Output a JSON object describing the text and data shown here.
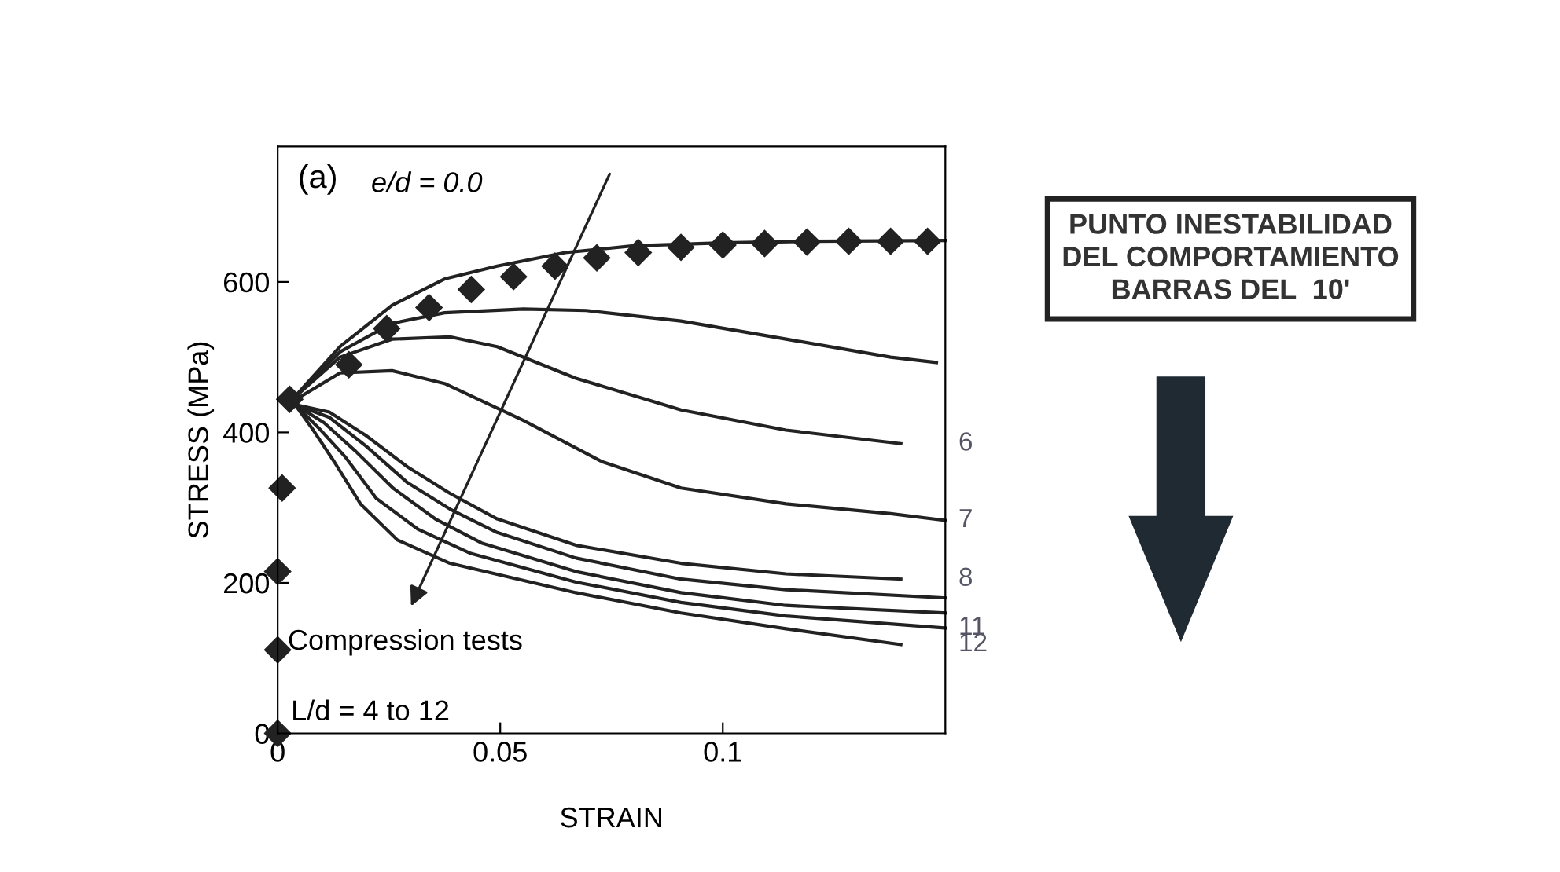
{
  "chart_data": {
    "type": "line",
    "xlabel": "STRAIN",
    "ylabel": "STRESS (MPa)",
    "xlim": [
      0,
      0.15
    ],
    "xticks": [
      0,
      0.05,
      0.1
    ],
    "ylim": [
      0,
      780
    ],
    "yticks": [
      0,
      200,
      400,
      600
    ],
    "grid": false,
    "series": [
      {
        "type": "scatter",
        "color": "#222222",
        "marker": "diamond",
        "x": [
          0,
          0,
          0,
          0.001,
          0.0027,
          0.016,
          0.0245,
          0.034,
          0.0435,
          0.053,
          0.0623,
          0.0717,
          0.081,
          0.0906,
          0.1,
          0.1094,
          0.1189,
          0.1283,
          0.1377,
          0.146
        ],
        "values": [
          0,
          111,
          215,
          326,
          444,
          490,
          538,
          566,
          590,
          607,
          621,
          632,
          639,
          646,
          649,
          651,
          653,
          654,
          654,
          654
        ]
      },
      {
        "color": "#222222",
        "marker": "none",
        "x": [
          0.0033,
          0.014,
          0.0257,
          0.0375,
          0.0493,
          0.0646,
          0.08,
          0.1,
          0.12,
          0.15
        ],
        "values": [
          444,
          514,
          569,
          604,
          621,
          639,
          648,
          652,
          654,
          655
        ]
      },
      {
        "color": "#222222",
        "marker": "none",
        "x": [
          0.0033,
          0.014,
          0.0257,
          0.0375,
          0.0552,
          0.0693,
          0.0906,
          0.1142,
          0.1377,
          0.148
        ],
        "values": [
          444,
          507,
          545,
          559,
          564,
          562,
          548,
          524,
          500,
          493
        ]
      },
      {
        "name": "6",
        "color": "#222222",
        "marker": "none",
        "x": [
          0.0033,
          0.014,
          0.0257,
          0.0387,
          0.0493,
          0.067,
          0.0906,
          0.1142,
          0.14
        ],
        "values": [
          444,
          500,
          524,
          527,
          514,
          472,
          430,
          403,
          385
        ]
      },
      {
        "name": "7",
        "color": "#222222",
        "marker": "none",
        "x": [
          0.0033,
          0.014,
          0.0257,
          0.0375,
          0.0552,
          0.0729,
          0.0906,
          0.1142,
          0.1377,
          0.15
        ],
        "values": [
          441,
          479,
          482,
          465,
          416,
          361,
          326,
          305,
          292,
          283
        ]
      },
      {
        "name": "8",
        "color": "#222222",
        "marker": "none",
        "x": [
          0.0039,
          0.0116,
          0.0198,
          0.0292,
          0.0387,
          0.0493,
          0.067,
          0.0906,
          0.1142,
          0.14
        ],
        "values": [
          437,
          427,
          396,
          354,
          319,
          285,
          250,
          226,
          212,
          205
        ]
      },
      {
        "color": "#222222",
        "marker": "none",
        "x": [
          0.0039,
          0.0116,
          0.0198,
          0.0292,
          0.0387,
          0.0493,
          0.067,
          0.0906,
          0.1142,
          0.15
        ],
        "values": [
          437,
          420,
          382,
          333,
          298,
          267,
          233,
          205,
          191,
          180
        ]
      },
      {
        "color": "#222222",
        "marker": "none",
        "x": [
          0.0039,
          0.0104,
          0.0175,
          0.0259,
          0.0354,
          0.0458,
          0.067,
          0.0906,
          0.1142,
          0.15
        ],
        "values": [
          437,
          413,
          375,
          326,
          285,
          253,
          215,
          187,
          170,
          160
        ]
      },
      {
        "name": "11",
        "color": "#222222",
        "marker": "none",
        "x": [
          0.0039,
          0.0092,
          0.0151,
          0.0222,
          0.0316,
          0.0434,
          0.067,
          0.0906,
          0.1142,
          0.15
        ],
        "values": [
          437,
          406,
          368,
          312,
          271,
          239,
          201,
          174,
          156,
          140
        ]
      },
      {
        "name": "12",
        "color": "#222222",
        "marker": "none",
        "x": [
          0.0039,
          0.008,
          0.0127,
          0.0186,
          0.0269,
          0.0387,
          0.067,
          0.0906,
          0.1142,
          0.14
        ],
        "values": [
          437,
          403,
          361,
          305,
          257,
          226,
          187,
          160,
          139,
          118
        ]
      }
    ],
    "annotations": [
      "(a)",
      "e/d = 0.0",
      "Compression tests",
      "L/d = 4 to 12",
      "PUNTO INESTABILIDAD\nDEL COMPORTAMIENTO\nBARRAS DEL  10'"
    ]
  }
}
